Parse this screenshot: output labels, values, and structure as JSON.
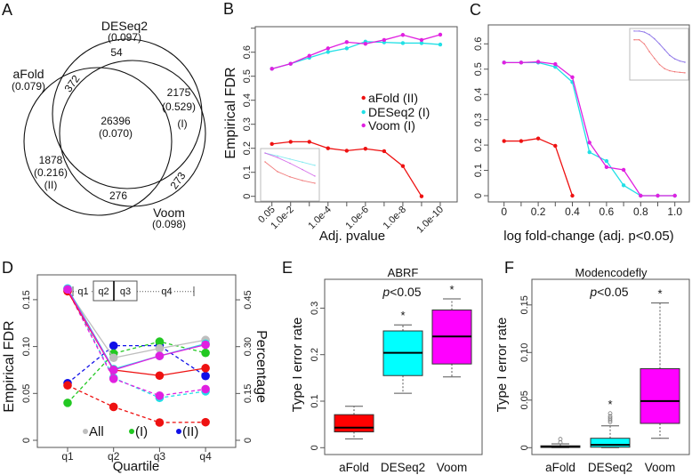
{
  "figure": {
    "panel_labels": [
      "A",
      "B",
      "C",
      "D",
      "E",
      "F"
    ]
  },
  "chart_data": [
    {
      "panel": "A",
      "type": "venn",
      "sets": [
        {
          "name": "aFold",
          "fdr": "(0.079)"
        },
        {
          "name": "DESeq2",
          "fdr": "(0.097)"
        },
        {
          "name": "Voom",
          "fdr": "(0.098)"
        }
      ],
      "regions": [
        {
          "sets": [
            "DESeq2"
          ],
          "count": "54"
        },
        {
          "sets": [
            "aFold",
            "DESeq2"
          ],
          "count": "372"
        },
        {
          "sets": [
            "aFold",
            "DESeq2",
            "Voom"
          ],
          "count": "26396",
          "fdr": "(0.070)"
        },
        {
          "sets": [
            "DESeq2",
            "Voom"
          ],
          "count": "2175",
          "fdr": "(0.529)",
          "group": "(I)"
        },
        {
          "sets": [
            "aFold"
          ],
          "count": "1878",
          "fdr": "(0.216)",
          "group": "(II)"
        },
        {
          "sets": [
            "aFold",
            "Voom"
          ],
          "count": "276"
        },
        {
          "sets": [
            "Voom"
          ],
          "count": "273"
        }
      ]
    },
    {
      "panel": "B",
      "type": "line",
      "title": "",
      "xlabel": "Adj. pvalue",
      "ylabel": "Empirical FDR",
      "x": [
        "0.05",
        "1.0e-2",
        "1.0e-3",
        "1.0e-4",
        "1.0e-5",
        "1.0e-6",
        "1.0e-7",
        "1.0e-8",
        "1.0e-9",
        "1.0e-10"
      ],
      "xtick_labels": [
        "0.05",
        "1.0e-2",
        "",
        "1.0e-4",
        "",
        "1.0e-6",
        "",
        "1.0e-8",
        "",
        "1.0e-10"
      ],
      "ylim": [
        0,
        0.7
      ],
      "yticks": [
        0,
        0.1,
        0.2,
        0.3,
        0.4,
        0.5,
        0.6,
        0.7
      ],
      "ytick_labels": [
        "0",
        "0.1",
        "0.2",
        "0.3",
        "0.4",
        "0.5",
        "0.6",
        ""
      ],
      "grid": false,
      "legend_position": "center-right",
      "series": [
        {
          "name": "aFold (II)",
          "color": "#ee1111",
          "values": [
            0.218,
            0.227,
            0.227,
            0.2,
            0.19,
            0.198,
            0.188,
            0.126,
            0.0,
            null
          ]
        },
        {
          "name": "DESeq2 (I)",
          "color": "#22e0e6",
          "values": [
            0.531,
            0.552,
            0.577,
            0.601,
            0.616,
            0.644,
            0.641,
            0.638,
            0.638,
            0.632
          ]
        },
        {
          "name": "Voom (I)",
          "color": "#e020e0",
          "values": [
            0.531,
            0.552,
            0.585,
            0.616,
            0.642,
            0.635,
            0.651,
            0.672,
            0.651,
            0.673
          ]
        }
      ],
      "inset": {
        "position": "bottom-left",
        "series": [
          {
            "name": "DESeq2",
            "color": "#7ae8ee",
            "values": [
              0.915,
              0.86,
              0.8,
              0.74,
              0.68
            ]
          },
          {
            "name": "Voom",
            "color": "#d060e8",
            "values": [
              0.915,
              0.83,
              0.72,
              0.6,
              0.475
            ]
          },
          {
            "name": "aFold",
            "color": "#f07070",
            "values": [
              0.746,
              0.56,
              0.46,
              0.39,
              0.34
            ]
          }
        ]
      }
    },
    {
      "panel": "C",
      "type": "line",
      "title": "",
      "xlabel": "log fold-change (adj. p<0.05)",
      "ylabel": "",
      "x": [
        0,
        0.1,
        0.2,
        0.3,
        0.4,
        0.5,
        0.6,
        0.7,
        0.8,
        0.9,
        1.0
      ],
      "xtick_labels": [
        "0",
        "",
        "0.2",
        "",
        "0.4",
        "",
        "0.6",
        "",
        "0.8",
        "",
        "1.0"
      ],
      "xlim": [
        0,
        1.0
      ],
      "ylim": [
        0,
        0.6
      ],
      "yticks": [
        0,
        0.1,
        0.2,
        0.3,
        0.4,
        0.5,
        0.6
      ],
      "ytick_labels": [
        "0",
        "0.1",
        "0.2",
        "0.3",
        "0.4",
        "0.5",
        "0.6"
      ],
      "grid": false,
      "series": [
        {
          "name": "aFold (II)",
          "color": "#ee1111",
          "values": [
            0.216,
            0.216,
            0.226,
            0.197,
            0.0,
            null,
            null,
            null,
            null,
            null,
            null
          ]
        },
        {
          "name": "DESeq2 (I)",
          "color": "#22e0e6",
          "values": [
            0.526,
            0.526,
            0.526,
            0.509,
            0.449,
            0.172,
            0.137,
            0.041,
            0.0,
            0.0,
            0.0
          ]
        },
        {
          "name": "Voom (I)",
          "color": "#e020e0",
          "values": [
            0.526,
            0.526,
            0.529,
            0.52,
            0.468,
            0.21,
            0.113,
            0.102,
            0.0,
            0.0,
            0.0
          ]
        }
      ],
      "inset": {
        "position": "top-right",
        "series": [
          {
            "name": "DESeq2",
            "color": "#7ab8f0",
            "values": [
              0.95,
              0.95,
              0.93,
              0.88,
              0.8,
              0.7,
              0.59,
              0.48,
              0.41,
              0.37,
              0.345
            ]
          },
          {
            "name": "Voom",
            "color": "#9a70e8",
            "values": [
              0.95,
              0.95,
              0.93,
              0.88,
              0.8,
              0.7,
              0.59,
              0.48,
              0.41,
              0.37,
              0.345
            ]
          },
          {
            "name": "aFold",
            "color": "#f07070",
            "values": [
              0.78,
              0.78,
              0.7,
              0.55,
              0.42,
              0.3,
              0.22,
              0.18,
              0.16,
              0.15,
              0.14
            ]
          }
        ]
      }
    },
    {
      "panel": "D",
      "type": "line",
      "xlabel": "Quartile",
      "ylabel_left": "Empirical FDR",
      "ylabel_right": "Percentage",
      "x": [
        "q1",
        "q2",
        "q3",
        "q4"
      ],
      "ylim_left": [
        0,
        0.15
      ],
      "yticks_left": [
        0,
        0.05,
        0.1,
        0.15
      ],
      "ytick_labels_left": [
        "0",
        "0.05",
        "0.10",
        "0.15"
      ],
      "ylim_right": [
        0,
        0.45
      ],
      "yticks_right": [
        0,
        0.15,
        0.3,
        0.45
      ],
      "ytick_labels_right": [
        "0",
        "0.15",
        "0.30",
        "0.45"
      ],
      "grid": false,
      "inset_boxplot_labels": [
        "q1",
        "q2",
        "q3",
        "q4"
      ],
      "legend_position": "bottom",
      "legend": [
        {
          "label": "All",
          "color": "#bebebe"
        },
        {
          "label": "(I)",
          "color": "#22c822"
        },
        {
          "label": "(II)",
          "color": "#1010e8"
        }
      ],
      "series": [
        {
          "name": "(II) percentage",
          "axis": "right",
          "style": "dashed",
          "color": "#1010e8",
          "values": [
            0.183,
            0.303,
            0.303,
            0.206
          ]
        },
        {
          "name": "(I) percentage",
          "axis": "right",
          "style": "dashed",
          "color": "#22c822",
          "values": [
            0.12,
            0.278,
            0.316,
            0.28
          ]
        },
        {
          "name": "aFold percentage",
          "axis": "right",
          "style": "dashed",
          "color": "#ee1111",
          "values": [
            0.176,
            0.107,
            0.057,
            0.058
          ]
        },
        {
          "name": "DESeq2 percentage",
          "axis": "right",
          "style": "dashed",
          "color": "#22e0e6",
          "values": [
            0.485,
            0.2,
            0.136,
            0.157
          ]
        },
        {
          "name": "Voom percentage",
          "axis": "right",
          "style": "dashed",
          "color": "#e020e0",
          "values": [
            0.48,
            0.197,
            0.143,
            0.164
          ]
        },
        {
          "name": "All FDR",
          "axis": "left",
          "style": "solid",
          "color": "#bebebe",
          "values": [
            0.16,
            0.088,
            0.098,
            0.107
          ]
        },
        {
          "name": "DESeq2 FDR",
          "axis": "left",
          "style": "solid",
          "color": "#22e0e6",
          "values": [
            0.162,
            0.076,
            0.09,
            0.103
          ]
        },
        {
          "name": "aFold FDR",
          "axis": "left",
          "style": "solid",
          "color": "#ee1111",
          "values": [
            0.159,
            0.075,
            0.069,
            0.077
          ]
        },
        {
          "name": "Voom FDR",
          "axis": "left",
          "style": "solid",
          "color": "#e020e0",
          "values": [
            0.161,
            0.075,
            0.09,
            0.102
          ]
        }
      ]
    },
    {
      "panel": "E",
      "type": "boxplot",
      "title": "ABRF",
      "ylabel": "Type I error rate",
      "annotation": {
        "symbol": "p",
        "threshold": "<0.05"
      },
      "significance_marker": "*",
      "ylim": [
        0,
        0.33
      ],
      "yticks": [
        0,
        0.1,
        0.2,
        0.3
      ],
      "ytick_labels": [
        "0",
        "0.1",
        "0.2",
        "0.3"
      ],
      "categories": [
        "aFold",
        "DESeq2",
        "Voom"
      ],
      "groups": [
        {
          "name": "aFold",
          "color": "#ff0000",
          "min": 0.019,
          "q1": 0.034,
          "median": 0.043,
          "q3": 0.071,
          "max": 0.089,
          "outliers": [],
          "significant": false
        },
        {
          "name": "DESeq2",
          "color": "#00ffff",
          "min": 0.117,
          "q1": 0.155,
          "median": 0.204,
          "q3": 0.251,
          "max": 0.264,
          "outliers": [],
          "significant": true
        },
        {
          "name": "Voom",
          "color": "#ff00ff",
          "min": 0.152,
          "q1": 0.18,
          "median": 0.239,
          "q3": 0.296,
          "max": 0.32,
          "outliers": [],
          "significant": true
        }
      ]
    },
    {
      "panel": "F",
      "type": "boxplot",
      "title": "Modencodefly",
      "ylabel": "Type I error rate",
      "annotation": {
        "symbol": "p",
        "threshold": "<0.05"
      },
      "significance_marker": "*",
      "ylim": [
        0,
        0.16
      ],
      "yticks": [
        0,
        0.05,
        0.1,
        0.15
      ],
      "ytick_labels": [
        "0",
        "0.05",
        "0.10",
        "0.15"
      ],
      "categories": [
        "aFold",
        "DESeq2",
        "Voom"
      ],
      "groups": [
        {
          "name": "aFold",
          "color": "#ff0000",
          "min": 0.0,
          "q1": 0.0003,
          "median": 0.001,
          "q3": 0.002,
          "max": 0.004,
          "outliers": [
            0.0055,
            0.009
          ],
          "significant": false
        },
        {
          "name": "DESeq2",
          "color": "#00ffff",
          "min": 0.0,
          "q1": 0.0005,
          "median": 0.003,
          "q3": 0.0099,
          "max": 0.023,
          "outliers": [
            0.027,
            0.029,
            0.031,
            0.033,
            0.036
          ],
          "significant": true
        },
        {
          "name": "Voom",
          "color": "#ff00ff",
          "min": 0.0099,
          "q1": 0.0255,
          "median": 0.049,
          "q3": 0.083,
          "max": 0.152,
          "outliers": [],
          "significant": true
        }
      ]
    }
  ]
}
